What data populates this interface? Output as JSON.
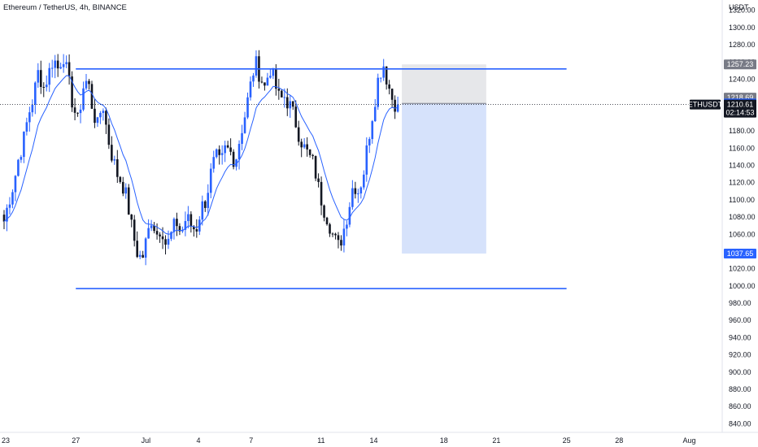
{
  "header": {
    "symbol_line": "Ethereum / TetherUS, 4h, BINANCE",
    "currency": "USDT"
  },
  "colors": {
    "line_blue": "#2962ff",
    "ma_blue": "#2962ff",
    "bear": "#131722",
    "bull": "#2962ff",
    "stop_zone": "#e6e7ea",
    "target_zone": "#d6e2fb",
    "grey_tag": "#787b86",
    "blue_tag": "#2962ff",
    "black_tag": "#131722"
  },
  "chart_data": {
    "type": "candlestick",
    "symbol": "ETHUSDT",
    "y_ticks": [
      1320,
      1300,
      1280,
      1260,
      1240,
      1220,
      1200,
      1180,
      1160,
      1140,
      1120,
      1100,
      1080,
      1060,
      1040,
      1020,
      1000,
      980,
      960,
      940,
      920,
      900,
      880,
      860,
      840
    ],
    "ylim": [
      830,
      1332
    ],
    "x_ticks": [
      "23",
      "27",
      "Jul",
      "4",
      "7",
      "11",
      "14",
      "18",
      "21",
      "25",
      "28",
      "Aug"
    ],
    "close_path": [
      1075,
      1100,
      1120,
      1150,
      1170,
      1200,
      1220,
      1250,
      1230,
      1245,
      1265,
      1252,
      1270,
      1240,
      1210,
      1190,
      1230,
      1240,
      1205,
      1185,
      1215,
      1175,
      1150,
      1130,
      1120,
      1100,
      1065,
      1040,
      1030,
      1055,
      1080,
      1060,
      1070,
      1045,
      1060,
      1075,
      1060,
      1080,
      1070,
      1065,
      1090,
      1100,
      1130,
      1150,
      1140,
      1160,
      1155,
      1145,
      1175,
      1200,
      1230,
      1260,
      1245,
      1230,
      1255,
      1235,
      1215,
      1220,
      1210,
      1195,
      1175,
      1160,
      1150,
      1140,
      1110,
      1090,
      1075,
      1055,
      1045,
      1065,
      1090,
      1120,
      1110,
      1130,
      1170,
      1205,
      1240,
      1260,
      1235,
      1215,
      1210.6
    ],
    "resistance_line": {
      "y": 1252,
      "from": "27",
      "to": "25"
    },
    "support_line": {
      "y": 997,
      "from": "27",
      "to": "25"
    },
    "position": {
      "entry": 1211.96,
      "stop": 1257.23,
      "target": 1037.65,
      "from": "15 Jul",
      "to": "20 Jul"
    },
    "price_tags": [
      {
        "value": "1257.23",
        "kind": "grey"
      },
      {
        "value": "1218.69",
        "kind": "grey"
      },
      {
        "value": "1211.96",
        "kind": "blue"
      },
      {
        "value": "1037.65",
        "kind": "blue"
      }
    ],
    "last_price": {
      "symbol": "ETHUSDT",
      "price": "1210.61",
      "countdown": "02:14:53"
    }
  }
}
